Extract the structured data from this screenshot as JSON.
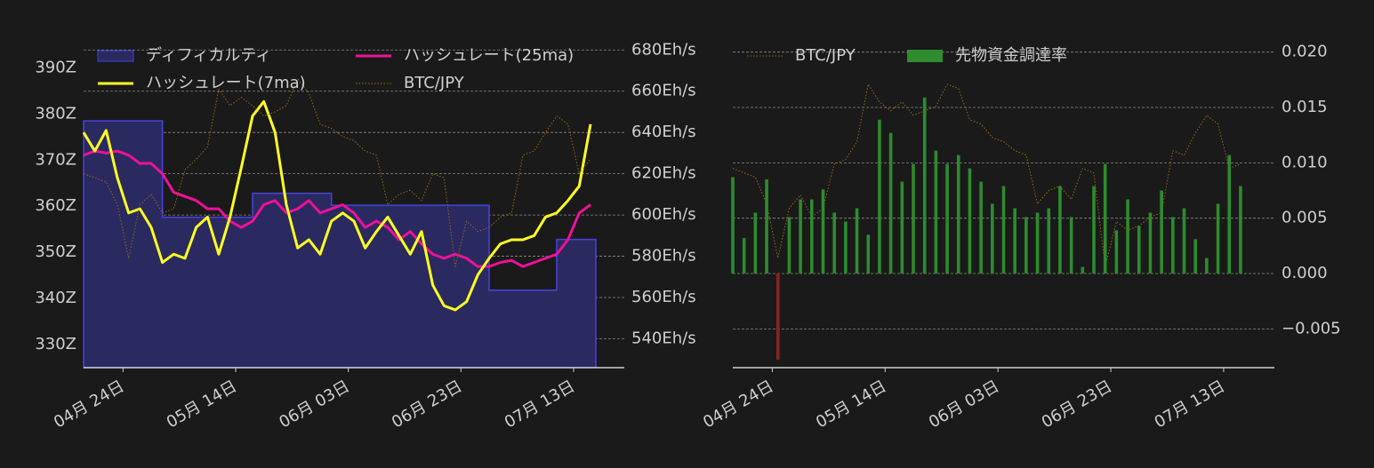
{
  "chart_data": [
    {
      "type": "line",
      "grid": "y2",
      "legend": "top",
      "xlim": [
        "04-17",
        "07-22"
      ],
      "xticks": [
        {
          "value": "04-24",
          "label": "04月 24日"
        },
        {
          "value": "05-14",
          "label": "05月 14日"
        },
        {
          "value": "06-03",
          "label": "06月 03日"
        },
        {
          "value": "06-23",
          "label": "06月 23日"
        },
        {
          "value": "07-13",
          "label": "07月 13日"
        }
      ],
      "ylim": [
        325,
        397
      ],
      "yticks": [
        {
          "value": 330,
          "label": "330Z"
        },
        {
          "value": 340,
          "label": "340Z"
        },
        {
          "value": 350,
          "label": "350Z"
        },
        {
          "value": 360,
          "label": "360Z"
        },
        {
          "value": 370,
          "label": "370Z"
        },
        {
          "value": 380,
          "label": "380Z"
        },
        {
          "value": 390,
          "label": "390Z"
        }
      ],
      "y2lim": [
        526,
        687
      ],
      "y2ticks": [
        {
          "value": 540,
          "label": "540Eh/s"
        },
        {
          "value": 560,
          "label": "560Eh/s"
        },
        {
          "value": 580,
          "label": "580Eh/s"
        },
        {
          "value": 600,
          "label": "600Eh/s"
        },
        {
          "value": 620,
          "label": "620Eh/s"
        },
        {
          "value": 640,
          "label": "640Eh/s"
        },
        {
          "value": 660,
          "label": "660Eh/s"
        },
        {
          "value": 680,
          "label": "680Eh/s"
        }
      ],
      "x": [
        "04-17",
        "04-19",
        "04-21",
        "04-23",
        "04-25",
        "04-27",
        "04-29",
        "05-01",
        "05-03",
        "05-05",
        "05-07",
        "05-09",
        "05-11",
        "05-13",
        "05-15",
        "05-17",
        "05-19",
        "05-21",
        "05-23",
        "05-25",
        "05-27",
        "05-29",
        "05-31",
        "06-02",
        "06-04",
        "06-06",
        "06-08",
        "06-10",
        "06-12",
        "06-14",
        "06-16",
        "06-18",
        "06-20",
        "06-22",
        "06-24",
        "06-26",
        "06-28",
        "06-30",
        "07-02",
        "07-04",
        "07-06",
        "07-08",
        "07-10",
        "07-12",
        "07-14",
        "07-16"
      ],
      "series": [
        {
          "name": "ディフィカルティ",
          "color": "#4444dd",
          "fill": "#2a2a60",
          "style": "step-area",
          "axis": "y",
          "values": [
            378.5,
            378.5,
            378.5,
            378.5,
            378.5,
            378.5,
            378.5,
            357.6,
            357.6,
            357.6,
            357.6,
            357.6,
            357.6,
            357.6,
            357.6,
            362.8,
            362.8,
            362.8,
            362.8,
            362.8,
            362.8,
            362.8,
            360.2,
            360.2,
            360.2,
            360.2,
            360.2,
            360.2,
            360.2,
            360.2,
            360.2,
            360.2,
            360.2,
            360.2,
            360.2,
            360.2,
            341.8,
            341.8,
            341.8,
            341.8,
            341.8,
            341.8,
            352.8,
            352.8,
            352.8,
            352.8
          ]
        },
        {
          "name": "ハッシュレート(25ma)",
          "color": "#ee1199",
          "style": "line",
          "axis": "y2",
          "values": [
            629,
            631,
            630,
            631,
            629,
            625,
            625,
            620,
            611,
            609,
            607,
            603,
            603,
            597,
            594,
            597,
            605,
            607,
            601,
            603,
            607,
            601,
            603,
            605,
            601,
            594,
            597,
            594,
            588,
            592,
            586,
            581,
            579,
            581,
            579,
            575,
            575,
            577,
            578,
            575,
            577,
            579,
            581,
            588,
            601,
            605
          ]
        },
        {
          "name": "ハッシュレート(7ma)",
          "color": "#ffff22",
          "style": "line",
          "axis": "y2",
          "values": [
            640,
            631,
            641,
            618,
            601,
            603,
            594,
            577,
            581,
            579,
            594,
            599,
            581,
            599,
            623,
            648,
            655,
            640,
            605,
            584,
            588,
            581,
            597,
            601,
            597,
            584,
            592,
            599,
            590,
            581,
            592,
            566,
            556,
            554,
            558,
            571,
            579,
            586,
            588,
            588,
            590,
            599,
            601,
            607,
            614,
            644
          ]
        },
        {
          "name": "BTC/JPY",
          "color": "#9a6a10",
          "style": "dotted",
          "axis": "y2",
          "values": [
            620,
            618,
            616,
            605,
            579,
            605,
            610,
            601,
            603,
            622,
            627,
            633,
            661,
            653,
            657,
            653,
            648,
            650,
            653,
            666,
            659,
            644,
            642,
            638,
            636,
            631,
            629,
            605,
            610,
            612,
            607,
            620,
            618,
            575,
            597,
            592,
            594,
            599,
            601,
            629,
            631,
            640,
            648,
            644,
            620,
            627
          ]
        }
      ]
    },
    {
      "type": "bar",
      "grid": "y",
      "legend": "top",
      "xlim": [
        "04-17",
        "07-22"
      ],
      "xticks": [
        {
          "value": "04-24",
          "label": "04月 24日"
        },
        {
          "value": "05-14",
          "label": "05月 14日"
        },
        {
          "value": "06-03",
          "label": "06月 03日"
        },
        {
          "value": "06-23",
          "label": "06月 23日"
        },
        {
          "value": "07-13",
          "label": "07月 13日"
        }
      ],
      "ylim": [
        -0.0085,
        0.0215
      ],
      "yticks": [
        {
          "value": -0.005,
          "label": "−0.005"
        },
        {
          "value": 0,
          "label": "0.000"
        },
        {
          "value": 0.005,
          "label": "0.005"
        },
        {
          "value": 0.01,
          "label": "0.010"
        },
        {
          "value": 0.015,
          "label": "0.015"
        },
        {
          "value": 0.02,
          "label": "0.020"
        }
      ],
      "x": [
        "04-17",
        "04-19",
        "04-21",
        "04-23",
        "04-25",
        "04-27",
        "04-29",
        "05-01",
        "05-03",
        "05-05",
        "05-07",
        "05-09",
        "05-11",
        "05-13",
        "05-15",
        "05-17",
        "05-19",
        "05-21",
        "05-23",
        "05-25",
        "05-27",
        "05-29",
        "05-31",
        "06-02",
        "06-04",
        "06-06",
        "06-08",
        "06-10",
        "06-12",
        "06-14",
        "06-16",
        "06-18",
        "06-20",
        "06-22",
        "06-24",
        "06-26",
        "06-28",
        "06-30",
        "07-02",
        "07-04",
        "07-06",
        "07-08",
        "07-10",
        "07-12",
        "07-14",
        "07-16"
      ],
      "series": [
        {
          "name": "BTC/JPY",
          "color": "#9a6a10",
          "style": "dotted",
          "values": [
            0.0095,
            0.0091,
            0.0087,
            0.0063,
            0.0014,
            0.0059,
            0.0071,
            0.0051,
            0.0059,
            0.0099,
            0.0103,
            0.0119,
            0.0171,
            0.0155,
            0.0147,
            0.0155,
            0.0143,
            0.0147,
            0.0151,
            0.0171,
            0.0167,
            0.0139,
            0.0135,
            0.0123,
            0.0119,
            0.0111,
            0.0107,
            0.0063,
            0.0075,
            0.0079,
            0.0067,
            0.0095,
            0.0091,
            0.0006,
            0.0047,
            0.0039,
            0.0043,
            0.0051,
            0.0055,
            0.0111,
            0.0107,
            0.0127,
            0.0143,
            0.0135,
            0.0095,
            0.0099
          ]
        },
        {
          "name": "先物資金調達率",
          "color": "#2e8b2e",
          "negative_color": "#8b2222",
          "style": "bar",
          "values": [
            0.0087,
            0.0032,
            0.0055,
            0.0085,
            -0.0078,
            0.0051,
            0.0067,
            0.0067,
            0.0076,
            0.0055,
            0.0047,
            0.0059,
            0.0035,
            0.0139,
            0.0127,
            0.0083,
            0.0099,
            0.0159,
            0.0111,
            0.0099,
            0.0107,
            0.0095,
            0.0083,
            0.0063,
            0.0079,
            0.0059,
            0.0051,
            0.0055,
            0.0059,
            0.0079,
            0.0051,
            0.0006,
            0.0079,
            0.0099,
            0.0039,
            0.0067,
            0.0043,
            0.0055,
            0.0075,
            0.0051,
            0.0059,
            0.0031,
            0.0014,
            0.0063,
            0.0107,
            0.0079
          ]
        }
      ]
    }
  ]
}
